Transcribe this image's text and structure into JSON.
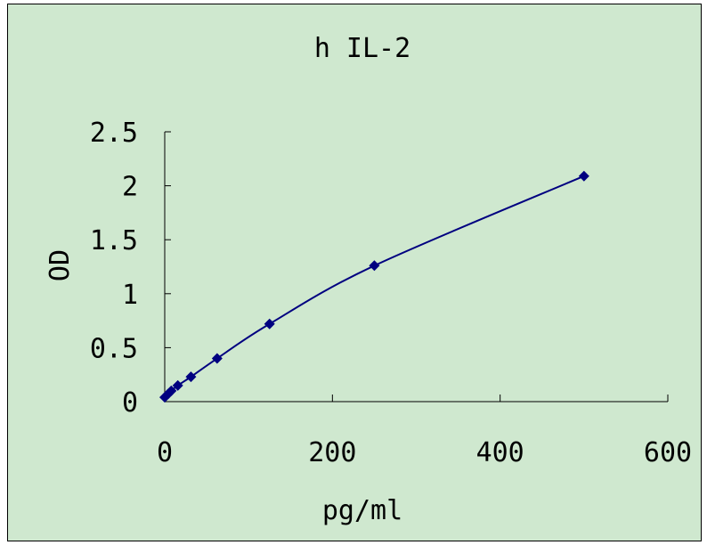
{
  "chart_data": {
    "type": "scatter",
    "title": "h IL-2",
    "xlabel": "pg/ml",
    "ylabel": "OD",
    "xlim": [
      0,
      600
    ],
    "ylim": [
      0,
      2.5
    ],
    "x_ticks": [
      0,
      200,
      400,
      600
    ],
    "y_ticks": [
      0,
      0.5,
      1,
      1.5,
      2,
      2.5
    ],
    "x_tick_labels": [
      "0",
      "200",
      "400",
      "600"
    ],
    "y_tick_labels": [
      "0",
      "0.5",
      "1",
      "1.5",
      "2",
      "2.5"
    ],
    "grid": false,
    "legend": false,
    "trendline": "smooth",
    "series": [
      {
        "color": "#000080",
        "marker": "diamond",
        "x": [
          0,
          3.9,
          7.8,
          15.6,
          31.25,
          62.5,
          125,
          250,
          500
        ],
        "y": [
          0.04,
          0.07,
          0.1,
          0.15,
          0.23,
          0.4,
          0.72,
          1.26,
          2.09
        ]
      }
    ]
  },
  "colors": {
    "background": "#cfe8cf",
    "series": "#000080",
    "axis": "#000000"
  }
}
